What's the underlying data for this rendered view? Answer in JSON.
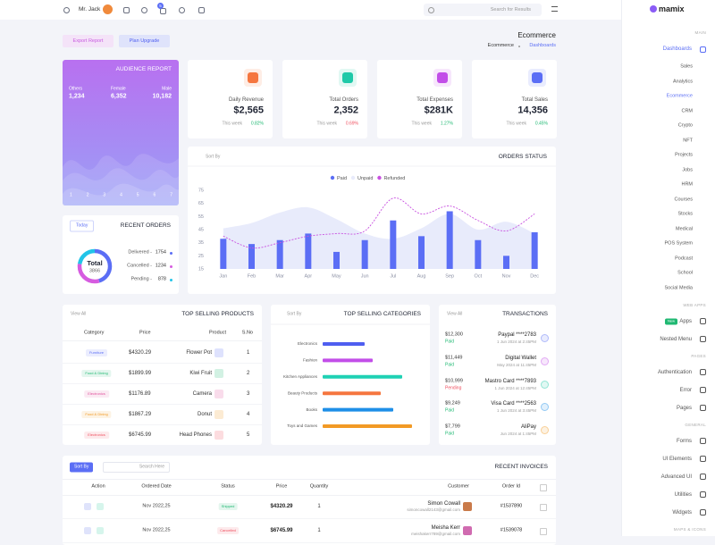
{
  "header": {
    "user": "Mr. Jack",
    "cart_count": 5,
    "search_placeholder": "Search for Results"
  },
  "page": {
    "title": "Ecommerce",
    "breadcrumb": [
      "Ecommerce",
      "Dashboards"
    ],
    "actions": [
      "Export Report",
      "Plan Upgrade"
    ]
  },
  "audience_report": {
    "title": "AUDIENCE REPORT",
    "stats": [
      {
        "label": "Others",
        "value": "1,234"
      },
      {
        "label": "Female",
        "value": "6,352"
      },
      {
        "label": "Male",
        "value": "10,182"
      }
    ],
    "x_labels": [
      "1",
      "2",
      "3",
      "4",
      "5",
      "6",
      "7"
    ]
  },
  "stats": [
    {
      "label": "Daily Revenue",
      "value": "$2,565",
      "period": "This week",
      "change": "0.82%",
      "color": "#f5763f",
      "change_color": "#1fb872"
    },
    {
      "label": "Total Orders",
      "value": "2,352",
      "period": "This week",
      "change": "0.69%",
      "color": "#1fc9a8",
      "change_color": "#ef4f5f"
    },
    {
      "label": "Total Expenses",
      "value": "$281K",
      "period": "This week",
      "change": "1.27%",
      "color": "#c24ee8",
      "change_color": "#1fb872"
    },
    {
      "label": "Total Sales",
      "value": "14,356",
      "period": "This week",
      "change": "0.45%",
      "color": "#5b6ef5",
      "change_color": "#1fb872"
    }
  ],
  "recent_orders": {
    "title": "RECENT ORDERS",
    "button": "Today",
    "center_label": "Total",
    "total": 3866,
    "items": [
      {
        "label": "Delivered -",
        "value": 1754,
        "color": "#5b6ef5"
      },
      {
        "label": "Cancelled -",
        "value": 1234,
        "color": "#d65ce0"
      },
      {
        "label": "Pending -",
        "value": 878,
        "color": "#22c4e8"
      }
    ]
  },
  "chart_data": [
    {
      "type": "bar",
      "title": "ORDERS STATUS",
      "sort_label": "Sort By",
      "categories": [
        "Jan",
        "Feb",
        "Mar",
        "Apr",
        "May",
        "Jun",
        "Jul",
        "Aug",
        "Sep",
        "Oct",
        "Nov",
        "Dec"
      ],
      "series": [
        {
          "name": "Paid",
          "type": "bar",
          "color": "#5b6ef5",
          "values": [
            38,
            34,
            37,
            42,
            28,
            37,
            52,
            40,
            59,
            37,
            25,
            43
          ]
        },
        {
          "name": "Unpaid",
          "type": "area",
          "color": "#e8ebfb",
          "values": [
            46,
            50,
            58,
            62,
            53,
            42,
            38,
            46,
            57,
            45,
            51,
            42
          ]
        },
        {
          "name": "Refunded",
          "type": "line",
          "dashed": true,
          "color": "#c850e0",
          "values": [
            40,
            31,
            35,
            40,
            42,
            44,
            69,
            57,
            63,
            52,
            44,
            57
          ]
        }
      ],
      "ylim": [
        15,
        75
      ],
      "yticks": [
        15,
        25,
        35,
        45,
        55,
        65,
        75
      ],
      "grid": false
    },
    {
      "type": "bar",
      "horizontal": true,
      "title": "TOP SELLING CATEGORIES",
      "sort_label": "Sort By",
      "categories": [
        "Electronics",
        "Fashion",
        "Kitchen Appliances",
        "Beauty Products",
        "Books",
        "Toys and Games"
      ],
      "values": [
        47,
        56,
        89,
        65,
        79,
        100
      ],
      "colors": [
        "#4f5ef0",
        "#c24ee8",
        "#1fd1b4",
        "#f5763f",
        "#1e8fe8",
        "#f29a25"
      ]
    }
  ],
  "top_selling_products": {
    "title": "TOP SELLING PRODUCTS",
    "link": "View All",
    "headers": [
      "Category",
      "Price",
      "Product",
      "S.No"
    ],
    "rows": [
      {
        "category": "Furniture",
        "tone": "#5b6ef5",
        "price": "$4320.29",
        "product": "Flower Pot",
        "sno": 1
      },
      {
        "category": "Food & Dining",
        "tone": "#1fb872",
        "price": "$1899.99",
        "product": "Kiwi Fruit",
        "sno": 2
      },
      {
        "category": "Electronics",
        "tone": "#e0509b",
        "price": "$1176.89",
        "product": "Camera",
        "sno": 3
      },
      {
        "category": "Food & Dining",
        "tone": "#f29a25",
        "price": "$1867.29",
        "product": "Donut",
        "sno": 4
      },
      {
        "category": "Electronics",
        "tone": "#ef4f5f",
        "price": "$6745.99",
        "product": "Head Phones",
        "sno": 5
      }
    ]
  },
  "transactions": {
    "title": "TRANSACTIONS",
    "link": "View All",
    "rows": [
      {
        "amount": "$12,300",
        "status": "Paid",
        "tone": "#1fb872",
        "method": "Paypal ****2783",
        "date": "1 Jun 2024 at 2:45PM",
        "color": "#5b6ef5"
      },
      {
        "amount": "$11,449",
        "status": "Paid",
        "tone": "#1fb872",
        "method": "Digital Wallet",
        "date": "May 2024 at 11:45PM",
        "color": "#c24ee8"
      },
      {
        "amount": "$10,999",
        "status": "Pending",
        "tone": "#ef4f5f",
        "method": "Mastro Card ****7893",
        "date": "1 Jun 2024 at 12:45PM",
        "color": "#1fc9a8"
      },
      {
        "amount": "$9,249",
        "status": "Paid",
        "tone": "#1fb872",
        "method": "Visa Card ****2563",
        "date": "1 Jun 2024 at 3:45PM",
        "color": "#1e8fe8"
      },
      {
        "amount": "$7,799",
        "status": "Paid",
        "tone": "#1fb872",
        "method": "AliPay",
        "date": "Jun 2024 at 1:45PM",
        "color": "#f29a25"
      }
    ]
  },
  "recent_invoices": {
    "title": "RECENT INVOICES",
    "button": "Sort By",
    "search_placeholder": "Search Here",
    "headers": [
      "Action",
      "Ordered Date",
      "Status",
      "Price",
      "Quantity",
      "Customer",
      "Order Id"
    ],
    "rows": [
      {
        "date": "Nov 2022,25",
        "status": "Shipped",
        "tone": "#1fb872",
        "price": "$4320.29",
        "quantity": 1,
        "customer": "Simon Cowall",
        "email": "simoncowall2143@gmail.com",
        "order_id": "#1537890"
      },
      {
        "date": "Nov 2022,25",
        "status": "Cancelled",
        "tone": "#ef4f5f",
        "price": "$6745.99",
        "quantity": 1,
        "customer": "Meisha Kerr",
        "email": "meishakerr789@gmail.com",
        "order_id": "#1539078"
      }
    ]
  },
  "sidebar": {
    "logo": "mamix",
    "sections": [
      {
        "title": "MAIN",
        "items": [
          {
            "label": "Dashboards",
            "active": true,
            "active_child": 3,
            "children": [
              "Sales",
              "Analytics",
              "Ecommerce",
              "CRM",
              "Crypto",
              "NFT",
              "Projects",
              "Jobs",
              "HRM",
              "Courses",
              "Stocks",
              "Medical",
              "POS System",
              "Podcast",
              "School",
              "Social Media"
            ]
          }
        ]
      },
      {
        "title": "WEB APPS",
        "items": [
          {
            "label": "Apps",
            "badge": "New"
          },
          {
            "label": "Nested Menu"
          }
        ]
      },
      {
        "title": "PAGES",
        "items": [
          {
            "label": "Authentication"
          },
          {
            "label": "Error"
          },
          {
            "label": "Pages"
          }
        ]
      },
      {
        "title": "GENERAL",
        "items": [
          {
            "label": "Forms"
          },
          {
            "label": "UI Elements"
          },
          {
            "label": "Advanced UI"
          },
          {
            "label": "Utilities"
          },
          {
            "label": "Widgets"
          }
        ]
      },
      {
        "title": "MAPS & ICONS",
        "items": []
      }
    ]
  }
}
